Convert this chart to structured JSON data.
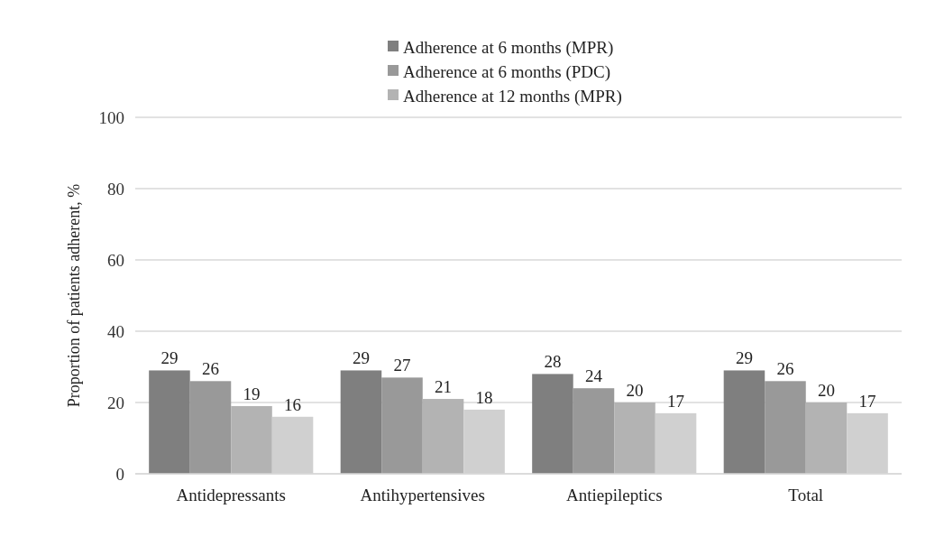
{
  "chart_data": {
    "type": "bar",
    "ylabel": "Proportion of patients adherent, %",
    "categories": [
      "Antidepressants",
      "Antihypertensives",
      "Antiepileptics",
      "Total"
    ],
    "series": [
      {
        "name": "Adherence at 6 months (MPR)",
        "color": "#7f7f7f",
        "values": [
          29,
          29,
          28,
          29
        ]
      },
      {
        "name": "Adherence at 6 months (PDC)",
        "color": "#999999",
        "values": [
          26,
          27,
          24,
          26
        ]
      },
      {
        "name": "Adherence at 12 months (MPR)",
        "color": "#b3b3b3",
        "values": [
          19,
          21,
          20,
          20
        ]
      },
      {
        "color": "#d0d0d0",
        "values": [
          16,
          18,
          17,
          17
        ]
      }
    ],
    "ylim": [
      0,
      100
    ],
    "yticks": [
      0,
      20,
      40,
      60,
      80,
      100
    ],
    "grid": "y",
    "legend": "top",
    "data_labels": true
  }
}
